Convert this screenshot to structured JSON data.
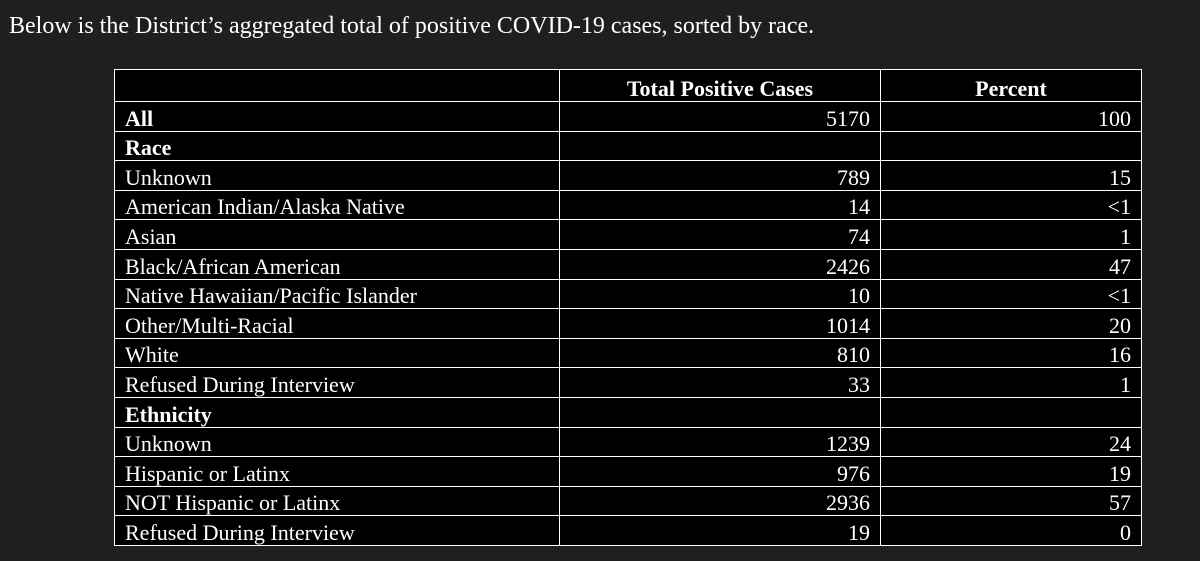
{
  "caption": "Below is the District’s aggregated total of positive COVID-19 cases, sorted by race.",
  "table": {
    "headers": {
      "label": "",
      "cases": "Total Positive Cases",
      "percent": "Percent"
    },
    "all_row": {
      "label": "All",
      "cases": "5170",
      "percent": "100"
    },
    "race": {
      "label": "Race",
      "rows": [
        {
          "label": "Unknown",
          "cases": "789",
          "percent": "15"
        },
        {
          "label": "American Indian/Alaska Native",
          "cases": "14",
          "percent": "<1"
        },
        {
          "label": "Asian",
          "cases": "74",
          "percent": "1"
        },
        {
          "label": "Black/African American",
          "cases": "2426",
          "percent": "47"
        },
        {
          "label": "Native Hawaiian/Pacific Islander",
          "cases": "10",
          "percent": "<1"
        },
        {
          "label": "Other/Multi-Racial",
          "cases": "1014",
          "percent": "20"
        },
        {
          "label": "White",
          "cases": "810",
          "percent": "16"
        },
        {
          "label": "Refused During Interview",
          "cases": "33",
          "percent": "1"
        }
      ]
    },
    "ethnicity": {
      "label": "Ethnicity",
      "rows": [
        {
          "label": "Unknown",
          "cases": "1239",
          "percent": "24"
        },
        {
          "label": "Hispanic or Latinx",
          "cases": "976",
          "percent": "19"
        },
        {
          "label": "NOT Hispanic or Latinx",
          "cases": "2936",
          "percent": "57"
        },
        {
          "label": "Refused During Interview",
          "cases": "19",
          "percent": "0"
        }
      ]
    }
  }
}
